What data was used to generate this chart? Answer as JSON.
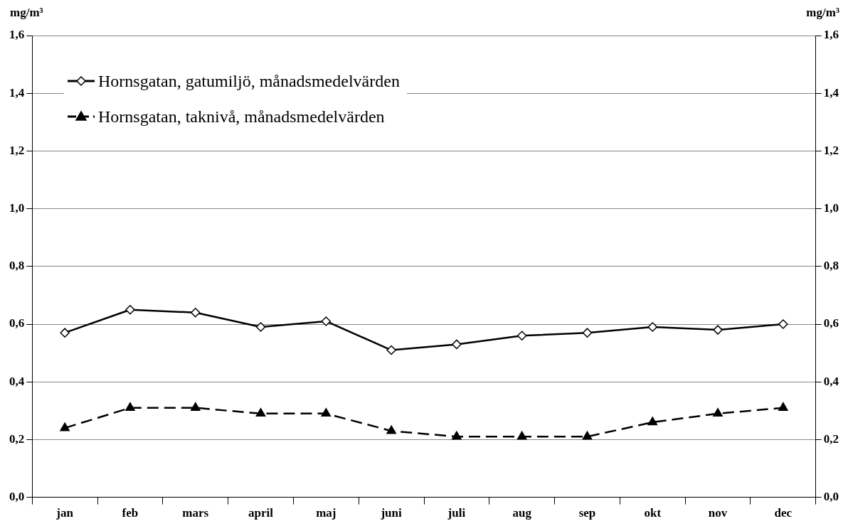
{
  "chart_data": {
    "type": "line",
    "ylabel": "mg/m³",
    "y2label": "mg/m³",
    "categories": [
      "jan",
      "feb",
      "mars",
      "april",
      "maj",
      "juni",
      "juli",
      "aug",
      "sep",
      "okt",
      "nov",
      "dec"
    ],
    "series": [
      {
        "name": "Hornsgatan, gatumiljö, månadsmedelvärden",
        "color": "#000000",
        "marker": "diamond",
        "line_style": "solid",
        "values": [
          0.57,
          0.65,
          0.64,
          0.59,
          0.61,
          0.51,
          0.53,
          0.56,
          0.57,
          0.59,
          0.58,
          0.6
        ]
      },
      {
        "name": "Hornsgatan, taknivå, månadsmedelvärden",
        "color": "#000000",
        "marker": "triangle",
        "line_style": "dashed",
        "values": [
          0.24,
          0.31,
          0.31,
          0.29,
          0.29,
          0.23,
          0.21,
          0.21,
          0.21,
          0.26,
          0.29,
          0.31
        ]
      }
    ],
    "ylim": [
      0,
      1.6
    ],
    "yticks": [
      {
        "value": 0,
        "label": "0,0"
      },
      {
        "value": 0.2,
        "label": "0,2"
      },
      {
        "value": 0.4,
        "label": "0,4"
      },
      {
        "value": 0.6,
        "label": "0,6"
      },
      {
        "value": 0.8,
        "label": "0,8"
      },
      {
        "value": 1.0,
        "label": "1,0"
      },
      {
        "value": 1.2,
        "label": "1,2"
      },
      {
        "value": 1.4,
        "label": "1,4"
      },
      {
        "value": 1.6,
        "label": "1,6"
      }
    ],
    "y2lim": [
      0,
      1.6
    ],
    "y2ticks": [
      {
        "value": 0,
        "label": "0,0"
      },
      {
        "value": 0.2,
        "label": "0,2"
      },
      {
        "value": 0.4,
        "label": "0,4"
      },
      {
        "value": 0.6,
        "label": "0,6"
      },
      {
        "value": 0.8,
        "label": "0,8"
      },
      {
        "value": 1.0,
        "label": "1,0"
      },
      {
        "value": 1.2,
        "label": "1,2"
      },
      {
        "value": 1.4,
        "label": "1,4"
      },
      {
        "value": 1.6,
        "label": "1,6"
      }
    ],
    "grid": "y",
    "legend": "top left"
  }
}
